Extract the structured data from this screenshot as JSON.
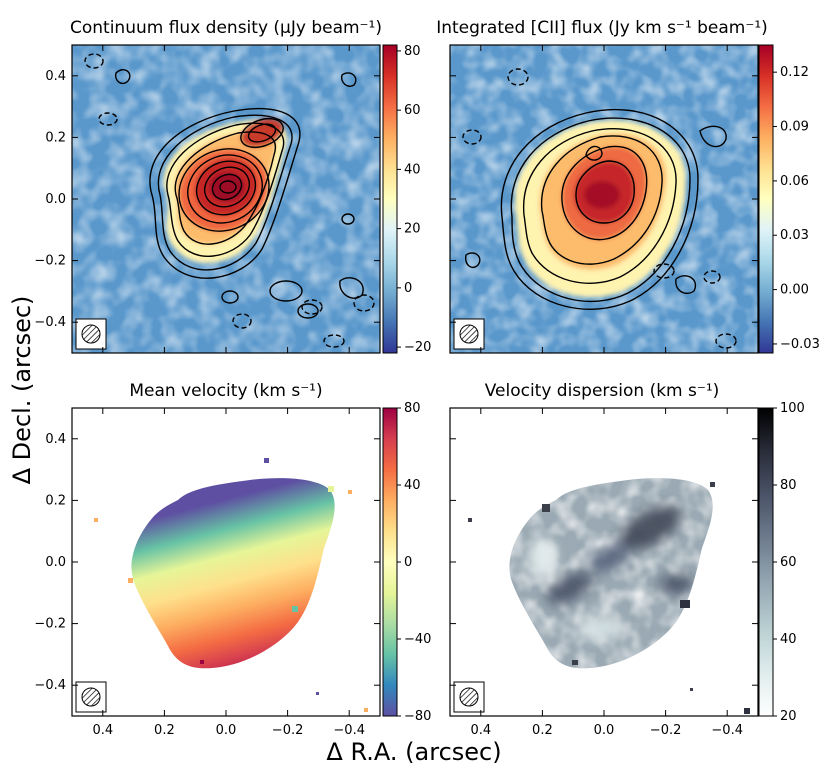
{
  "figure": {
    "xlabel": "Δ R.A. (arcsec)",
    "ylabel": "Δ Decl. (arcsec)"
  },
  "chart_data": [
    {
      "type": "heatmap",
      "title": "Continuum flux density (μJy beam⁻¹)",
      "xlim": [
        0.5,
        -0.5
      ],
      "ylim": [
        -0.5,
        0.5
      ],
      "x_ticks": [
        "0.4",
        "0.2",
        "0.0",
        "−0.2",
        "−0.4"
      ],
      "y_ticks": [
        "0.4",
        "0.2",
        "0.0",
        "−0.2",
        "−0.4"
      ],
      "colorbar": {
        "min": -22,
        "max": 82,
        "cmap": "RdYlBu_r",
        "ticks": [
          "80",
          "60",
          "40",
          "20",
          "0",
          "−20"
        ]
      },
      "sources": [
        {
          "x": 0.0,
          "y": 0.03,
          "peak": 80
        },
        {
          "x": -0.1,
          "y": 0.2,
          "peak": 60
        }
      ],
      "contours": "solid positive levels, dashed negative",
      "beam_icon": "hatched-ellipse"
    },
    {
      "type": "heatmap",
      "title": "Integrated [CII] flux (Jy km s⁻¹ beam⁻¹)",
      "xlim": [
        0.5,
        -0.5
      ],
      "ylim": [
        -0.5,
        0.5
      ],
      "x_ticks": [
        "0.4",
        "0.2",
        "0.0",
        "−0.2",
        "−0.4"
      ],
      "y_ticks": [
        "0.4",
        "0.2",
        "0.0",
        "−0.2",
        "−0.4"
      ],
      "colorbar": {
        "min": -0.035,
        "max": 0.135,
        "cmap": "RdYlBu_r",
        "ticks": [
          "0.12",
          "0.09",
          "0.06",
          "0.03",
          "0.00",
          "−0.03"
        ]
      },
      "sources": [
        {
          "x": 0.0,
          "y": 0.05,
          "peak": 0.13
        }
      ],
      "contours": "solid positive levels, dashed negative",
      "beam_icon": "hatched-ellipse"
    },
    {
      "type": "heatmap",
      "title": "Mean velocity (km s⁻¹)",
      "xlim": [
        0.5,
        -0.5
      ],
      "ylim": [
        -0.5,
        0.5
      ],
      "x_ticks": [
        "0.4",
        "0.2",
        "0.0",
        "−0.2",
        "−0.4"
      ],
      "y_ticks": [
        "0.4",
        "0.2",
        "0.0",
        "−0.2",
        "−0.4"
      ],
      "colorbar": {
        "min": -80,
        "max": 80,
        "cmap": "Spectral_r",
        "ticks": [
          "80",
          "40",
          "0",
          "−40",
          "−80"
        ]
      },
      "gradient": "north side approx −80, south side approx +80",
      "beam_icon": "hatched-ellipse"
    },
    {
      "type": "heatmap",
      "title": "Velocity dispersion (km s⁻¹)",
      "xlim": [
        0.5,
        -0.5
      ],
      "ylim": [
        -0.5,
        0.5
      ],
      "x_ticks": [
        "0.4",
        "0.2",
        "0.0",
        "−0.2",
        "−0.4"
      ],
      "y_ticks": [
        "0.4",
        "0.2",
        "0.0",
        "−0.2",
        "−0.4"
      ],
      "colorbar": {
        "min": 20,
        "max": 100,
        "cmap": "bone_r",
        "ticks": [
          "100",
          "80",
          "60",
          "40",
          "20"
        ]
      },
      "typical_range": [
        40,
        90
      ],
      "beam_icon": "hatched-ellipse"
    }
  ]
}
